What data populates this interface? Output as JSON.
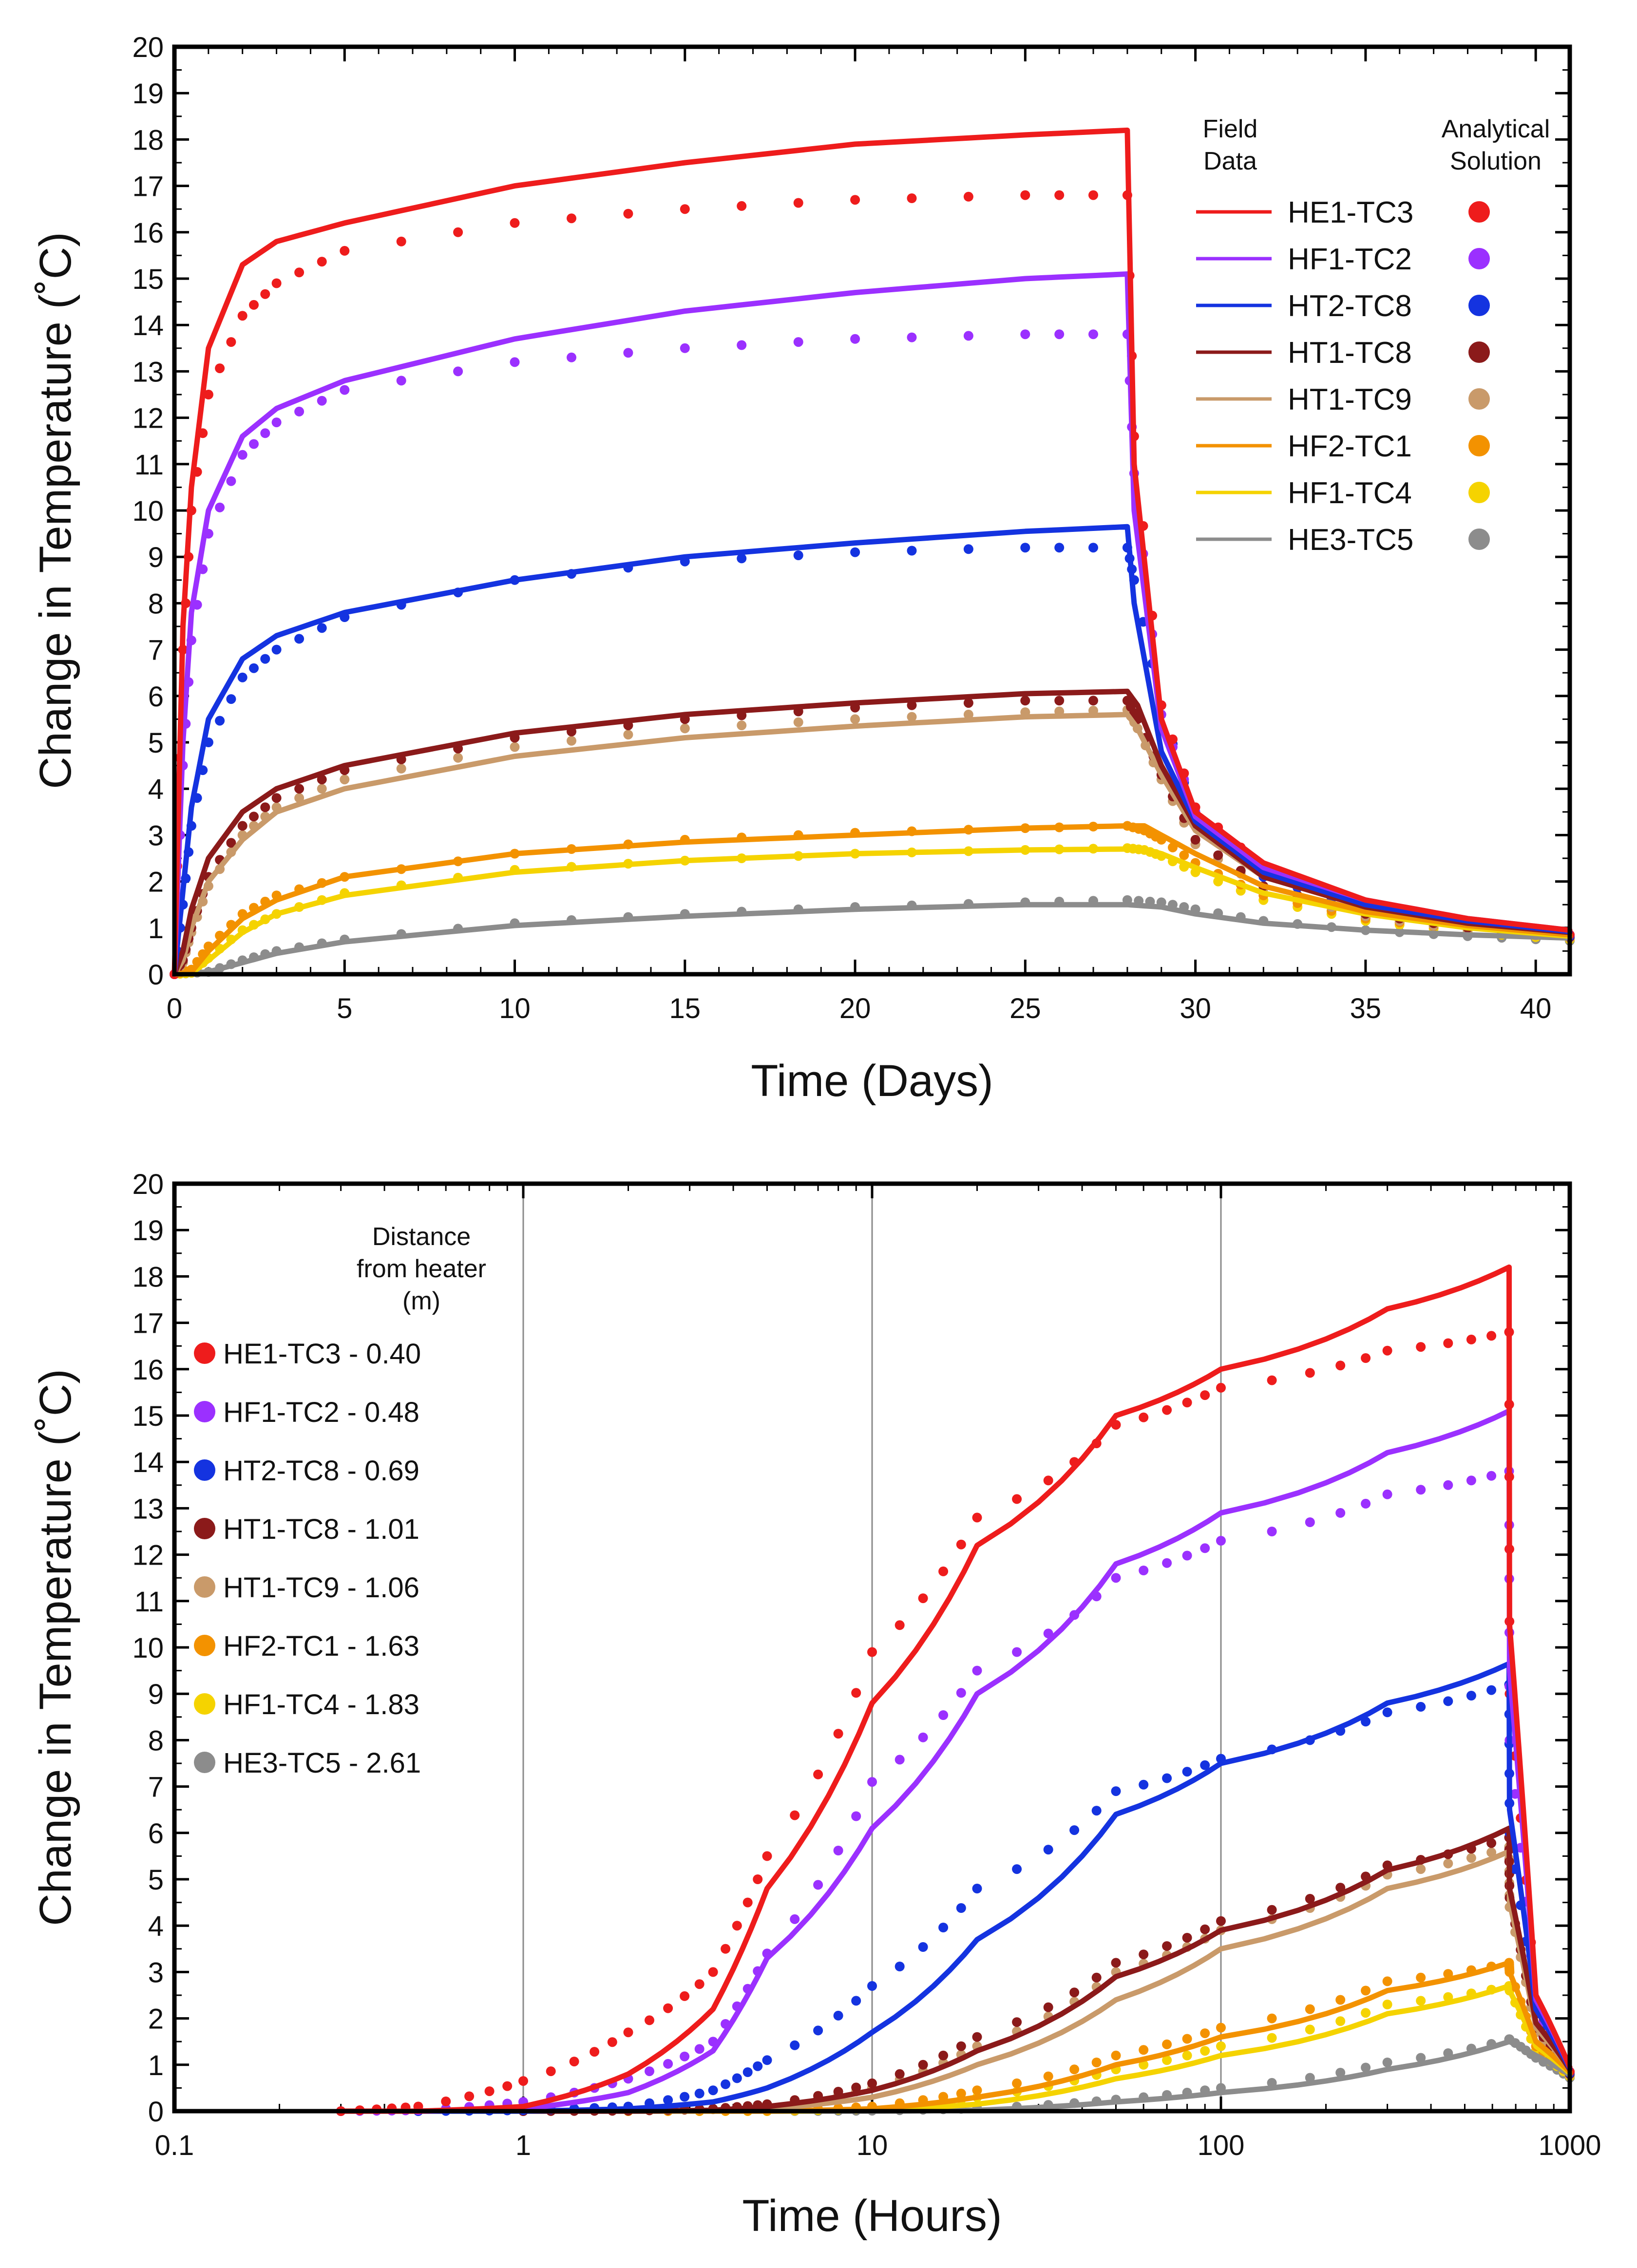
{
  "colors": {
    "HE1-TC3": "#ee1c1c",
    "HF1-TC2": "#9b30ff",
    "HT2-TC8": "#1433e0",
    "HT1-TC8": "#8b1a1a",
    "HT1-TC9": "#c99a6a",
    "HF2-TC1": "#f39200",
    "HF1-TC4": "#f5d300",
    "HE3-TC5": "#8c8c8c"
  },
  "chart_data": [
    {
      "type": "line",
      "title": "",
      "xlabel": "Time (Days)",
      "ylabel": "Change in Temperature (˚C)",
      "xlim": [
        0,
        41
      ],
      "ylim": [
        0,
        20
      ],
      "x_ticks": [
        "0",
        "5",
        "10",
        "15",
        "20",
        "25",
        "30",
        "35",
        "40"
      ],
      "y_ticks": [
        "0",
        "1",
        "2",
        "3",
        "4",
        "5",
        "6",
        "7",
        "8",
        "9",
        "10",
        "11",
        "12",
        "13",
        "14",
        "15",
        "16",
        "17",
        "18",
        "19",
        "20"
      ],
      "legend_header_field": [
        "Field",
        "Data"
      ],
      "legend_header_analytical": [
        "Analytical",
        "Solution"
      ],
      "legend_position": "top-right",
      "series": [
        {
          "name": "HE1-TC3",
          "distance_m": 0.4,
          "field_peak": 18.2,
          "analytical_peak": 16.8,
          "x": [
            0,
            0.25,
            0.5,
            1,
            2,
            3,
            5,
            10,
            15,
            20,
            25,
            28,
            28.2,
            29,
            30,
            32,
            35,
            38,
            41
          ],
          "field": [
            0,
            7.5,
            10.5,
            13.5,
            15.3,
            15.8,
            16.2,
            17.0,
            17.5,
            17.9,
            18.1,
            18.2,
            11.0,
            5.5,
            3.5,
            2.4,
            1.6,
            1.2,
            0.95
          ],
          "analytical": [
            0,
            7.0,
            10.0,
            12.5,
            14.2,
            14.9,
            15.6,
            16.2,
            16.5,
            16.7,
            16.8,
            16.8,
            11.6,
            5.8,
            3.6,
            2.3,
            1.5,
            1.1,
            0.85
          ]
        },
        {
          "name": "HF1-TC2",
          "distance_m": 0.48,
          "field_peak": 15.1,
          "analytical_peak": 13.8,
          "x": [
            0,
            0.25,
            0.5,
            1,
            2,
            3,
            5,
            10,
            15,
            20,
            25,
            28,
            28.2,
            29,
            30,
            32,
            35,
            38,
            41
          ],
          "field": [
            0,
            5.0,
            7.8,
            10.0,
            11.6,
            12.2,
            12.8,
            13.7,
            14.3,
            14.7,
            15.0,
            15.1,
            10.0,
            5.3,
            3.4,
            2.3,
            1.6,
            1.2,
            0.95
          ],
          "analytical": [
            0,
            4.5,
            7.2,
            9.5,
            11.2,
            11.9,
            12.6,
            13.2,
            13.5,
            13.7,
            13.8,
            13.8,
            10.8,
            5.6,
            3.5,
            2.3,
            1.5,
            1.1,
            0.85
          ]
        },
        {
          "name": "HT2-TC8",
          "distance_m": 0.69,
          "field_peak": 9.6,
          "analytical_peak": 9.2,
          "x": [
            0,
            0.25,
            0.5,
            1,
            2,
            3,
            5,
            10,
            15,
            20,
            25,
            28,
            28.2,
            29,
            30,
            32,
            35,
            38,
            41
          ],
          "field": [
            0,
            1.8,
            3.6,
            5.5,
            6.8,
            7.3,
            7.8,
            8.5,
            9.0,
            9.3,
            9.55,
            9.65,
            8.0,
            4.8,
            3.3,
            2.2,
            1.5,
            1.15,
            0.92
          ],
          "analytical": [
            0,
            1.5,
            3.2,
            5.0,
            6.4,
            7.0,
            7.7,
            8.5,
            8.9,
            9.1,
            9.2,
            9.2,
            8.5,
            5.8,
            3.3,
            2.1,
            1.4,
            1.05,
            0.82
          ]
        },
        {
          "name": "HT1-TC8",
          "distance_m": 1.01,
          "field_peak": 6.1,
          "analytical_peak": 5.9,
          "x": [
            0,
            0.25,
            0.5,
            1,
            2,
            3,
            5,
            10,
            15,
            20,
            25,
            28,
            28.3,
            29,
            30,
            32,
            35,
            38,
            41
          ],
          "field": [
            0,
            0.5,
            1.4,
            2.5,
            3.5,
            4.0,
            4.5,
            5.2,
            5.6,
            5.85,
            6.05,
            6.1,
            5.8,
            4.5,
            3.2,
            2.1,
            1.45,
            1.1,
            0.9
          ],
          "analytical": [
            0,
            0.3,
            1.0,
            2.1,
            3.2,
            3.8,
            4.4,
            5.1,
            5.5,
            5.75,
            5.9,
            5.9,
            5.5,
            4.3,
            2.9,
            1.9,
            1.3,
            1.0,
            0.8
          ]
        },
        {
          "name": "HT1-TC9",
          "distance_m": 1.06,
          "field_peak": 5.6,
          "analytical_peak": 5.7,
          "x": [
            0,
            0.25,
            0.5,
            1,
            2,
            3,
            5,
            10,
            15,
            20,
            25,
            28,
            28.3,
            29,
            30,
            32,
            35,
            38,
            41
          ],
          "field": [
            0,
            0.3,
            1.0,
            2.0,
            2.9,
            3.5,
            4.0,
            4.7,
            5.1,
            5.35,
            5.55,
            5.6,
            5.3,
            4.3,
            3.1,
            2.1,
            1.45,
            1.1,
            0.9
          ],
          "analytical": [
            0,
            0.25,
            0.9,
            1.9,
            3.0,
            3.6,
            4.2,
            4.9,
            5.3,
            5.5,
            5.65,
            5.7,
            5.3,
            4.2,
            2.8,
            1.85,
            1.25,
            0.95,
            0.78
          ]
        },
        {
          "name": "HF2-TC1",
          "distance_m": 1.63,
          "field_peak": 3.2,
          "analytical_peak": 3.2,
          "x": [
            0,
            0.5,
            1,
            2,
            3,
            5,
            10,
            15,
            20,
            25,
            28,
            28.5,
            29,
            30,
            32,
            35,
            38,
            41
          ],
          "field": [
            0,
            0.05,
            0.5,
            1.2,
            1.6,
            2.1,
            2.6,
            2.85,
            3.0,
            3.15,
            3.2,
            3.2,
            3.0,
            2.6,
            1.9,
            1.35,
            1.05,
            0.85
          ],
          "analytical": [
            0,
            0.1,
            0.6,
            1.3,
            1.7,
            2.1,
            2.6,
            2.9,
            3.05,
            3.15,
            3.2,
            3.1,
            2.9,
            2.4,
            1.7,
            1.2,
            0.95,
            0.78
          ]
        },
        {
          "name": "HF1-TC4",
          "distance_m": 1.83,
          "field_peak": 2.7,
          "analytical_peak": 2.7,
          "x": [
            0,
            0.5,
            1,
            2,
            3,
            5,
            10,
            15,
            20,
            25,
            28,
            28.5,
            29,
            30,
            32,
            35,
            38,
            41
          ],
          "field": [
            0,
            0.02,
            0.3,
            0.9,
            1.3,
            1.7,
            2.2,
            2.45,
            2.6,
            2.68,
            2.7,
            2.7,
            2.6,
            2.3,
            1.75,
            1.3,
            1.0,
            0.82
          ],
          "analytical": [
            0,
            0.03,
            0.35,
            0.95,
            1.3,
            1.75,
            2.25,
            2.45,
            2.6,
            2.68,
            2.72,
            2.68,
            2.55,
            2.2,
            1.6,
            1.15,
            0.9,
            0.75
          ]
        },
        {
          "name": "HE3-TC5",
          "distance_m": 2.61,
          "field_peak": 1.5,
          "analytical_peak": 1.6,
          "x": [
            0,
            1,
            2,
            3,
            5,
            10,
            15,
            20,
            25,
            28,
            29,
            30,
            32,
            35,
            38,
            41
          ],
          "field": [
            0,
            0.05,
            0.25,
            0.45,
            0.7,
            1.05,
            1.25,
            1.4,
            1.5,
            1.5,
            1.45,
            1.3,
            1.1,
            0.95,
            0.85,
            0.78
          ],
          "analytical": [
            0,
            0.05,
            0.3,
            0.5,
            0.75,
            1.1,
            1.3,
            1.45,
            1.55,
            1.6,
            1.55,
            1.4,
            1.15,
            0.95,
            0.82,
            0.72
          ]
        }
      ]
    },
    {
      "type": "line",
      "title": "",
      "xlabel": "Time (Hours)",
      "ylabel": "Change in Temperature (˚C)",
      "xscale": "log",
      "xlim": [
        0.1,
        1000
      ],
      "ylim": [
        0,
        20
      ],
      "x_ticks": [
        "0.1",
        "1",
        "10",
        "100",
        "1000"
      ],
      "y_ticks": [
        "0",
        "1",
        "2",
        "3",
        "4",
        "5",
        "6",
        "7",
        "8",
        "9",
        "10",
        "11",
        "12",
        "13",
        "14",
        "15",
        "16",
        "17",
        "18",
        "19",
        "20"
      ],
      "vertical_gridlines_at": [
        1,
        10,
        100
      ],
      "legend_header": [
        "Distance",
        "from heater",
        "(m)"
      ],
      "legend_position": "top-left",
      "legend_entries": [
        "HE1-TC3 - 0.40",
        "HF1-TC2 - 0.48",
        "HT2-TC8 - 0.69",
        "HT1-TC8 - 1.01",
        "HT1-TC9 - 1.06",
        "HF2-TC1 - 1.63",
        "HF1-TC4 - 1.83",
        "HE3-TC5 - 2.61"
      ],
      "series": [
        {
          "name": "HE1-TC3",
          "distance_m": 0.4,
          "x": [
            0.3,
            0.5,
            1,
            2,
            3.5,
            5,
            10,
            20,
            50,
            100,
            300,
            670,
            672,
            800,
            1000
          ],
          "field": [
            0,
            0,
            0.1,
            0.8,
            2.2,
            4.8,
            8.8,
            12.2,
            15.0,
            16.0,
            17.3,
            18.2,
            10.5,
            2.5,
            0.95
          ],
          "analytical": [
            0,
            0.1,
            0.65,
            1.7,
            3.0,
            5.5,
            9.9,
            12.8,
            14.8,
            15.6,
            16.4,
            16.8,
            9.0,
            2.3,
            0.85
          ]
        },
        {
          "name": "HF1-TC2",
          "distance_m": 0.48,
          "x": [
            0.3,
            0.5,
            1,
            2,
            3.5,
            5,
            10,
            20,
            50,
            100,
            300,
            670,
            672,
            800,
            1000
          ],
          "field": [
            0,
            0,
            0.05,
            0.4,
            1.3,
            3.3,
            6.1,
            9.0,
            11.8,
            12.9,
            14.2,
            15.1,
            9.5,
            2.4,
            0.95
          ],
          "analytical": [
            0,
            0.02,
            0.2,
            0.7,
            1.5,
            3.4,
            7.1,
            9.5,
            11.5,
            12.3,
            13.3,
            13.8,
            8.0,
            2.2,
            0.85
          ]
        },
        {
          "name": "HT2-TC8",
          "distance_m": 0.69,
          "x": [
            0.5,
            1,
            2,
            3.5,
            5,
            10,
            20,
            50,
            100,
            300,
            670,
            672,
            800,
            1000
          ],
          "field": [
            0,
            0,
            0.05,
            0.2,
            0.5,
            1.7,
            3.7,
            6.4,
            7.5,
            8.8,
            9.65,
            6.5,
            2.2,
            0.92
          ],
          "analytical": [
            0,
            0.02,
            0.1,
            0.45,
            1.1,
            2.7,
            4.8,
            6.9,
            7.6,
            8.6,
            9.2,
            6.0,
            2.1,
            0.82
          ]
        },
        {
          "name": "HT1-TC8",
          "distance_m": 1.01,
          "x": [
            1,
            2,
            3.5,
            5,
            10,
            20,
            50,
            100,
            300,
            670,
            672,
            800,
            1000
          ],
          "field": [
            0,
            0,
            0.02,
            0.1,
            0.45,
            1.3,
            2.9,
            3.9,
            5.2,
            6.1,
            4.8,
            1.9,
            0.9
          ],
          "analytical": [
            0,
            0.01,
            0.05,
            0.15,
            0.6,
            1.6,
            3.2,
            4.1,
            5.3,
            5.9,
            4.6,
            1.8,
            0.8
          ]
        },
        {
          "name": "HT1-TC9",
          "distance_m": 1.06,
          "x": [
            1,
            2,
            3.5,
            5,
            10,
            20,
            50,
            100,
            300,
            670,
            672,
            800,
            1000
          ],
          "field": [
            0,
            0,
            0.01,
            0.05,
            0.3,
            1.0,
            2.4,
            3.5,
            4.8,
            5.6,
            4.5,
            1.8,
            0.9
          ],
          "analytical": [
            0,
            0.01,
            0.04,
            0.12,
            0.5,
            1.4,
            3.0,
            3.9,
            5.1,
            5.7,
            4.4,
            1.7,
            0.78
          ]
        },
        {
          "name": "HF2-TC1",
          "distance_m": 1.63,
          "x": [
            2,
            5,
            10,
            20,
            50,
            100,
            300,
            670,
            672,
            800,
            1000
          ],
          "field": [
            0,
            0,
            0.05,
            0.3,
            1.0,
            1.6,
            2.6,
            3.2,
            3.0,
            1.5,
            0.85
          ],
          "analytical": [
            0,
            0.01,
            0.1,
            0.45,
            1.2,
            1.8,
            2.8,
            3.2,
            3.0,
            1.4,
            0.78
          ]
        },
        {
          "name": "HF1-TC4",
          "distance_m": 1.83,
          "x": [
            2,
            5,
            10,
            20,
            50,
            100,
            300,
            670,
            672,
            800,
            1000
          ],
          "field": [
            0,
            0,
            0.02,
            0.15,
            0.7,
            1.2,
            2.1,
            2.7,
            2.6,
            1.4,
            0.82
          ],
          "analytical": [
            0,
            0,
            0.05,
            0.3,
            0.9,
            1.4,
            2.3,
            2.7,
            2.6,
            1.3,
            0.75
          ]
        },
        {
          "name": "HE3-TC5",
          "distance_m": 2.61,
          "x": [
            5,
            10,
            20,
            50,
            100,
            300,
            670,
            672,
            800,
            1000
          ],
          "field": [
            0,
            0,
            0.02,
            0.2,
            0.4,
            0.9,
            1.5,
            1.5,
            1.2,
            0.78
          ],
          "analytical": [
            0,
            0.01,
            0.06,
            0.25,
            0.5,
            1.05,
            1.55,
            1.55,
            1.15,
            0.72
          ]
        }
      ]
    }
  ]
}
